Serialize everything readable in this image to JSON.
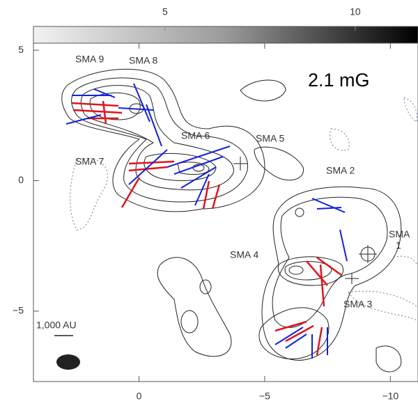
{
  "chart_data": {
    "type": "contour",
    "annotations": [
      "SMA 9",
      "SMA 8",
      "SMA 6",
      "SMA 5",
      "SMA 7",
      "SMA 2",
      "SMA\n1",
      "SMA 4",
      "SMA 3",
      "2.1 mG",
      "1,000 AU"
    ],
    "xlim": [
      4.2,
      -11.1
    ],
    "xticks": [
      0,
      {
        "value": -5,
        "label": "−5"
      },
      {
        "value": -10,
        "label": "−10"
      }
    ],
    "ylim": [
      5.27,
      -7.7
    ],
    "yticks": [
      5,
      0,
      {
        "value": -5,
        "label": "−5"
      }
    ],
    "clim": [
      1.54,
      11.65
    ],
    "cticks": [
      5,
      10
    ]
  }
}
